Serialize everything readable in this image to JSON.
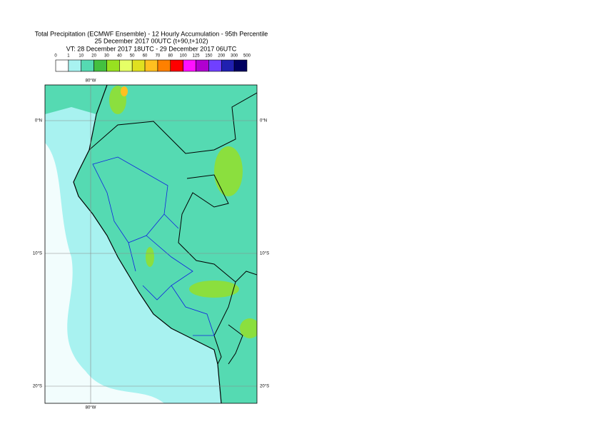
{
  "header": {
    "title": "Total Precipitation (ECMWF Ensemble) - 12 Hourly Accumulation - 95th Percentile",
    "base": "25 December 2017 00UTC (t+90,t+102)",
    "valid": "VT: 28 December 2017 18UTC - 29 December 2017 06UTC"
  },
  "legend": {
    "thresholds": [
      0,
      1,
      10,
      20,
      30,
      40,
      50,
      60,
      70,
      80,
      100,
      125,
      150,
      200,
      300,
      500
    ],
    "colors": [
      "#ffffff",
      "#a8f2f0",
      "#55dab2",
      "#44c040",
      "#98e020",
      "#e6ff66",
      "#e0e020",
      "#ffc020",
      "#ff8000",
      "#ff0000",
      "#ff10ff",
      "#b000d0",
      "#7040ff",
      "#2020b0",
      "#000060"
    ]
  },
  "map": {
    "lon_labels": [
      "80°W"
    ],
    "lat_labels": [
      "0°N",
      "10°S",
      "20°S"
    ]
  }
}
